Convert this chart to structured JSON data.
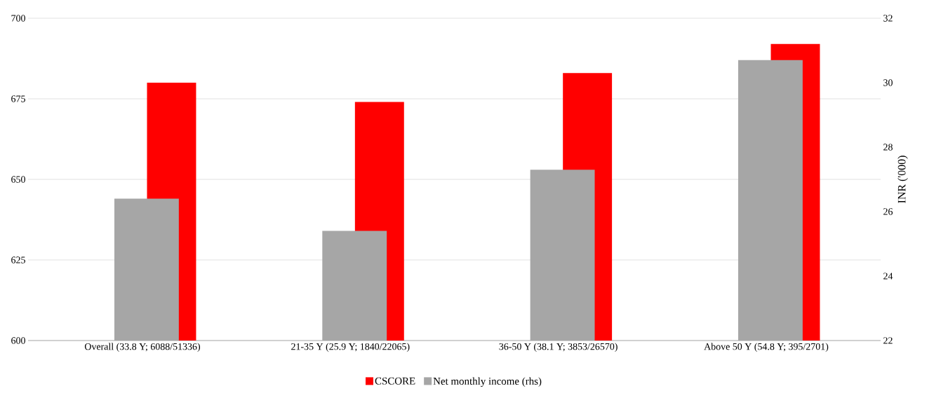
{
  "chart_data": {
    "type": "bar",
    "categories": [
      "Overall (33.8 Y; 6088/51336)",
      "21-35 Y (25.9 Y; 1840/22065)",
      "36-50 Y (38.1 Y; 3853/26570)",
      "Above 50 Y (54.8 Y; 395/2701)"
    ],
    "series": [
      {
        "name": "CSCORE",
        "color": "#ff0000",
        "values": [
          680,
          674,
          683,
          692
        ]
      },
      {
        "name": "Net monthly income (rhs)",
        "color": "#a6a6a6",
        "values": [
          26.4,
          25.4,
          27.3,
          30.7
        ],
        "axis": "y2"
      }
    ],
    "ylim": [
      600,
      700
    ],
    "yticks": [
      600,
      625,
      650,
      675,
      700
    ],
    "y2lim": [
      22,
      32
    ],
    "y2ticks": [
      22,
      24,
      26,
      28,
      30,
      32
    ],
    "y2label": "INR ('000)",
    "grid": "y",
    "legend": "bottom"
  }
}
